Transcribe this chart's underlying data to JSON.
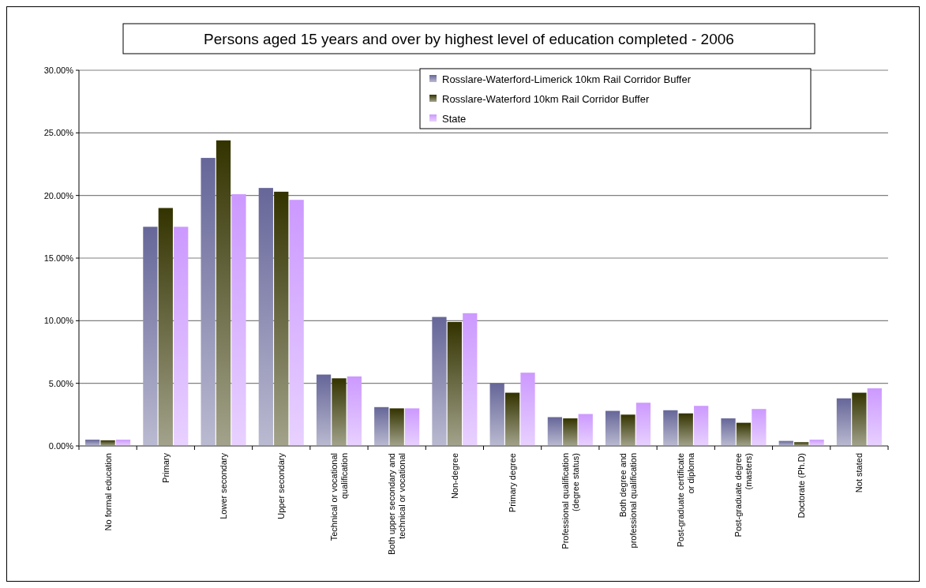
{
  "chart_data": {
    "type": "bar",
    "title": "Persons aged 15 years and over by highest level of education completed - 2006",
    "categories": [
      "No formal education",
      "Primary",
      "Lower secondary",
      "Upper secondary",
      "Technical or vocational qualification",
      "Both upper secondary and technical or vocational",
      "Non-degree",
      "Primary degree",
      "Professional qualification (degree status)",
      "Both degree and professional qualification",
      "Post-graduate certificate or diploma",
      "Post-graduate degree (masters)",
      "Doctorate (Ph.D)",
      "Not stated"
    ],
    "series": [
      {
        "name": "Rosslare-Waterford-Limerick 10km Rail Corridor Buffer",
        "color": "#666699",
        "values": [
          0.5,
          17.5,
          23.0,
          20.6,
          5.7,
          3.1,
          10.3,
          5.0,
          2.3,
          2.8,
          2.85,
          2.2,
          0.4,
          3.8
        ]
      },
      {
        "name": "Rosslare-Waterford 10km Rail Corridor Buffer",
        "color": "#333300",
        "values": [
          0.45,
          19.0,
          24.4,
          20.3,
          5.4,
          3.0,
          9.9,
          4.25,
          2.2,
          2.5,
          2.6,
          1.85,
          0.3,
          4.25
        ]
      },
      {
        "name": "State",
        "color": "#cc99ff",
        "values": [
          0.5,
          17.5,
          20.1,
          19.65,
          5.55,
          3.0,
          10.6,
          5.85,
          2.55,
          3.45,
          3.2,
          2.95,
          0.5,
          4.6
        ]
      }
    ],
    "ylim": [
      0,
      30
    ],
    "yticks": [
      {
        "value": 0,
        "label": "0.00%"
      },
      {
        "value": 5,
        "label": "5.00%"
      },
      {
        "value": 10,
        "label": "10.00%"
      },
      {
        "value": 15,
        "label": "15.00%"
      },
      {
        "value": 20,
        "label": "20.00%"
      },
      {
        "value": 25,
        "label": "25.00%"
      },
      {
        "value": 30,
        "label": "30.00%"
      }
    ],
    "grid": "y",
    "legend": "top right"
  }
}
